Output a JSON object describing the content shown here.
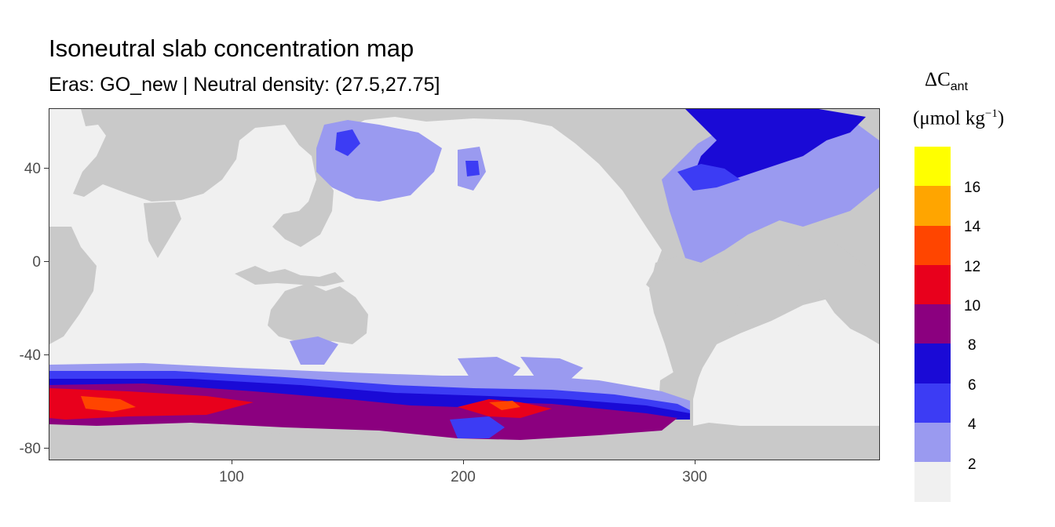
{
  "title": "Isoneutral slab concentration map",
  "subtitle": "Eras: GO_new | Neutral density: (27.5,27.75]",
  "legend": {
    "symbol": "ΔC",
    "symbol_sub": "ant",
    "unit": "(μmol kg",
    "unit_sup": "−1",
    "unit_close": ")",
    "labels": [
      "16",
      "14",
      "12",
      "10",
      "8",
      "6",
      "4",
      "2"
    ],
    "colors": [
      "#ffff00",
      "#ffa500",
      "#ff4500",
      "#e8001c",
      "#8b007f",
      "#1a0ad6",
      "#3c3cf4",
      "#9a9af0",
      "#f0f0f0"
    ]
  },
  "axes": {
    "y_ticks": [
      "40",
      "0",
      "-40",
      "-80"
    ],
    "x_ticks": [
      "100",
      "200",
      "300"
    ]
  },
  "colors": {
    "land": "#c9c9c9",
    "ocean_low": "#f0f0f0"
  }
}
